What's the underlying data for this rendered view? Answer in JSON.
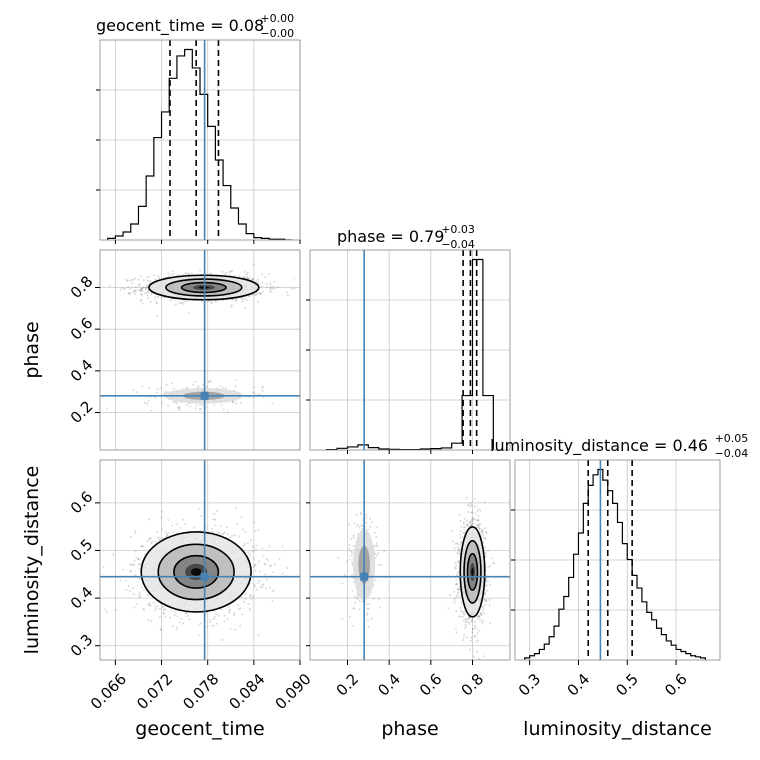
{
  "chart_data": {
    "type": "corner",
    "parameters": [
      {
        "name": "geocent_time",
        "label": "geocent_time",
        "range": [
          0.064,
          0.09
        ],
        "ticks": [
          0.066,
          0.072,
          0.078,
          0.084,
          0.09
        ],
        "tick_labels": [
          "0.066",
          "0.072",
          "0.078",
          "0.084",
          "0.090"
        ],
        "truth": 0.0776
      },
      {
        "name": "phase",
        "label": "phase",
        "range": [
          0.02,
          0.98
        ],
        "ticks": [
          0.2,
          0.4,
          0.6,
          0.8
        ],
        "tick_labels": [
          "0.2",
          "0.4",
          "0.6",
          "0.8"
        ],
        "truth": 0.28
      },
      {
        "name": "luminosity_distance",
        "label": "luminosity_distance",
        "range": [
          0.27,
          0.69
        ],
        "ticks": [
          0.3,
          0.4,
          0.5,
          0.6
        ],
        "tick_labels": [
          "0.3",
          "0.4",
          "0.5",
          "0.6"
        ],
        "truth": 0.445
      }
    ],
    "titles": [
      {
        "param": "geocent_time",
        "prefix": "geocent_time = 0.08",
        "plus": "+0.00",
        "minus": "−0.00"
      },
      {
        "param": "phase",
        "prefix": "phase = 0.79",
        "plus": "+0.03",
        "minus": "−0.04"
      },
      {
        "param": "luminosity_distance",
        "prefix": "luminosity_distance = 0.46",
        "plus": "+0.05",
        "minus": "−0.04"
      }
    ],
    "quantiles": {
      "geocent_time": [
        0.0731,
        0.0765,
        0.0794
      ],
      "phase": [
        0.755,
        0.79,
        0.82
      ],
      "luminosity_distance": [
        0.42,
        0.46,
        0.51
      ]
    },
    "histograms": {
      "geocent_time": {
        "edges": [
          0.065,
          0.066,
          0.067,
          0.068,
          0.069,
          0.07,
          0.071,
          0.072,
          0.073,
          0.074,
          0.075,
          0.076,
          0.077,
          0.078,
          0.079,
          0.08,
          0.081,
          0.082,
          0.083,
          0.084,
          0.085,
          0.086,
          0.087,
          0.088,
          0.089
        ],
        "counts": [
          2,
          5,
          10,
          20,
          42,
          80,
          128,
          160,
          202,
          230,
          238,
          215,
          182,
          142,
          100,
          68,
          40,
          20,
          8,
          3,
          2,
          1,
          1,
          0
        ]
      },
      "phase": {
        "edges": [
          0.1,
          0.15,
          0.2,
          0.25,
          0.3,
          0.35,
          0.4,
          0.45,
          0.5,
          0.55,
          0.6,
          0.65,
          0.7,
          0.75,
          0.8,
          0.85,
          0.9
        ],
        "counts": [
          1,
          5,
          9,
          15,
          7,
          3,
          2,
          1,
          1,
          3,
          4,
          6,
          20,
          160,
          560,
          160
        ]
      },
      "luminosity_distance": {
        "edges": [
          0.29,
          0.3,
          0.31,
          0.32,
          0.33,
          0.34,
          0.35,
          0.36,
          0.37,
          0.38,
          0.39,
          0.4,
          0.41,
          0.42,
          0.43,
          0.44,
          0.45,
          0.46,
          0.47,
          0.48,
          0.49,
          0.5,
          0.51,
          0.52,
          0.53,
          0.54,
          0.55,
          0.56,
          0.57,
          0.58,
          0.59,
          0.6,
          0.61,
          0.62,
          0.63,
          0.64,
          0.65,
          0.66
        ],
        "counts": [
          2,
          4,
          6,
          10,
          15,
          22,
          32,
          48,
          60,
          78,
          100,
          120,
          148,
          165,
          175,
          180,
          170,
          160,
          148,
          130,
          110,
          95,
          80,
          68,
          55,
          45,
          38,
          30,
          24,
          18,
          14,
          10,
          8,
          6,
          4,
          3,
          2
        ]
      }
    },
    "pairs": [
      {
        "x": "geocent_time",
        "y": "phase",
        "modes": [
          {
            "cx": 0.0775,
            "cy": 0.8,
            "sx": 0.0034,
            "sy": 0.028,
            "weight": 0.86
          },
          {
            "cx": 0.0775,
            "cy": 0.28,
            "sx": 0.0034,
            "sy": 0.025,
            "weight": 0.14
          }
        ]
      },
      {
        "x": "geocent_time",
        "y": "luminosity_distance",
        "modes": [
          {
            "cx": 0.0765,
            "cy": 0.455,
            "sx": 0.0034,
            "sy": 0.04,
            "weight": 1
          }
        ]
      },
      {
        "x": "phase",
        "y": "luminosity_distance",
        "modes": [
          {
            "cx": 0.8,
            "cy": 0.455,
            "sx": 0.028,
            "sy": 0.045,
            "weight": 0.86
          },
          {
            "cx": 0.28,
            "cy": 0.47,
            "sx": 0.035,
            "sy": 0.05,
            "weight": 0.14
          }
        ]
      }
    ],
    "contour_levels": 3,
    "truth_color": "#4682b4",
    "grid": true,
    "legend": "none"
  }
}
